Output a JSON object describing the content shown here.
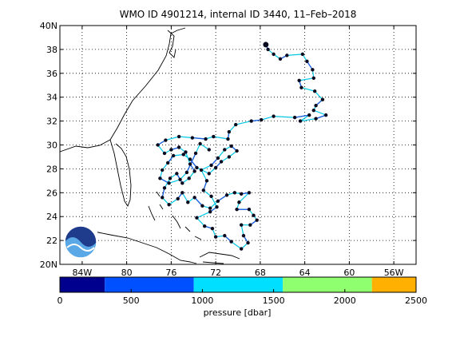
{
  "chart_data": {
    "type": "map-trajectory",
    "title": "WMO ID 4901214, internal ID 3440, 11–Feb–2018",
    "lon_ticks": [
      "84W",
      "80",
      "76",
      "72",
      "68",
      "64",
      "60",
      "56W"
    ],
    "lon_values": [
      -84,
      -80,
      -76,
      -72,
      -68,
      -64,
      -60,
      -56
    ],
    "lat_ticks": [
      "20N",
      "22",
      "24",
      "26",
      "28",
      "30",
      "32",
      "34",
      "36",
      "38",
      "40N"
    ],
    "lat_values": [
      20,
      22,
      24,
      26,
      28,
      30,
      32,
      34,
      36,
      38,
      40
    ],
    "lon_range": [
      -86,
      -54
    ],
    "lat_range": [
      20,
      40
    ],
    "grid": true,
    "colorbar": {
      "label": "pressure [dbar]",
      "ticks": [
        "0",
        "500",
        "1000",
        "1500",
        "2000",
        "2500"
      ],
      "range": [
        0,
        2500
      ],
      "bins": [
        {
          "from": 0,
          "to": 315,
          "color": "#00008f"
        },
        {
          "from": 315,
          "to": 940,
          "color": "#0050ff"
        },
        {
          "from": 940,
          "to": 1565,
          "color": "#00dfff"
        },
        {
          "from": 1565,
          "to": 2190,
          "color": "#8fff70"
        },
        {
          "from": 2190,
          "to": 2500,
          "color": "#ffb000"
        }
      ]
    },
    "track": [
      [
        -67.5,
        38.4
      ],
      [
        -67.3,
        38.0
      ],
      [
        -66.8,
        37.6
      ],
      [
        -66.2,
        37.2
      ],
      [
        -65.6,
        37.5
      ],
      [
        -64.2,
        37.6
      ],
      [
        -63.8,
        37.0
      ],
      [
        -63.3,
        36.3
      ],
      [
        -63.2,
        35.6
      ],
      [
        -64.5,
        35.4
      ],
      [
        -64.3,
        34.8
      ],
      [
        -63.1,
        34.5
      ],
      [
        -62.4,
        33.8
      ],
      [
        -63.0,
        33.3
      ],
      [
        -63.2,
        32.9
      ],
      [
        -62.1,
        32.5
      ],
      [
        -63.0,
        32.2
      ],
      [
        -64.4,
        32.0
      ],
      [
        -63.6,
        32.5
      ],
      [
        -64.9,
        32.3
      ],
      [
        -66.8,
        32.4
      ],
      [
        -67.9,
        32.1
      ],
      [
        -68.8,
        32.0
      ],
      [
        -70.2,
        31.7
      ],
      [
        -70.8,
        31.1
      ],
      [
        -70.9,
        30.5
      ],
      [
        -72.2,
        30.7
      ],
      [
        -72.9,
        30.5
      ],
      [
        -74.1,
        30.6
      ],
      [
        -75.3,
        30.7
      ],
      [
        -76.5,
        30.4
      ],
      [
        -77.2,
        30.0
      ],
      [
        -76.6,
        29.3
      ],
      [
        -76.0,
        29.6
      ],
      [
        -75.3,
        29.8
      ],
      [
        -74.7,
        29.4
      ],
      [
        -74.3,
        28.4
      ],
      [
        -73.9,
        27.8
      ],
      [
        -74.4,
        27.2
      ],
      [
        -75.0,
        26.8
      ],
      [
        -75.5,
        27.6
      ],
      [
        -76.1,
        27.2
      ],
      [
        -76.6,
        26.4
      ],
      [
        -76.8,
        25.6
      ],
      [
        -76.2,
        25.0
      ],
      [
        -75.4,
        25.5
      ],
      [
        -75.0,
        26.0
      ],
      [
        -74.5,
        25.2
      ],
      [
        -73.9,
        25.6
      ],
      [
        -73.2,
        24.9
      ],
      [
        -72.5,
        24.7
      ],
      [
        -71.8,
        25.3
      ],
      [
        -71.0,
        25.8
      ],
      [
        -70.3,
        26.0
      ],
      [
        -69.7,
        25.9
      ],
      [
        -69.0,
        26.0
      ],
      [
        -69.9,
        25.2
      ],
      [
        -70.1,
        24.6
      ],
      [
        -69.0,
        24.6
      ],
      [
        -68.6,
        24.1
      ],
      [
        -68.3,
        23.7
      ],
      [
        -68.9,
        23.3
      ],
      [
        -69.7,
        23.3
      ],
      [
        -69.5,
        22.4
      ],
      [
        -69.1,
        21.8
      ],
      [
        -69.7,
        21.3
      ],
      [
        -70.6,
        21.9
      ],
      [
        -71.2,
        22.4
      ],
      [
        -72.0,
        22.3
      ],
      [
        -72.3,
        23.0
      ],
      [
        -73.0,
        23.2
      ],
      [
        -73.7,
        23.9
      ],
      [
        -72.5,
        24.4
      ],
      [
        -71.9,
        24.8
      ],
      [
        -72.4,
        25.7
      ],
      [
        -73.1,
        26.2
      ],
      [
        -72.8,
        27.0
      ],
      [
        -73.3,
        27.9
      ],
      [
        -72.4,
        28.3
      ],
      [
        -71.8,
        28.9
      ],
      [
        -71.2,
        29.6
      ],
      [
        -70.6,
        29.9
      ],
      [
        -70.1,
        29.5
      ],
      [
        -70.8,
        29.0
      ],
      [
        -71.5,
        28.6
      ],
      [
        -72.0,
        28.1
      ],
      [
        -72.6,
        27.6
      ],
      [
        -73.7,
        28.1
      ],
      [
        -74.3,
        28.8
      ],
      [
        -74.9,
        29.2
      ],
      [
        -75.8,
        29.1
      ],
      [
        -76.3,
        28.5
      ],
      [
        -76.8,
        27.9
      ],
      [
        -77.0,
        27.2
      ],
      [
        -76.2,
        26.8
      ],
      [
        -75.2,
        27.1
      ],
      [
        -74.6,
        27.7
      ],
      [
        -73.8,
        29.3
      ],
      [
        -73.4,
        30.1
      ],
      [
        -72.6,
        29.6
      ]
    ]
  }
}
